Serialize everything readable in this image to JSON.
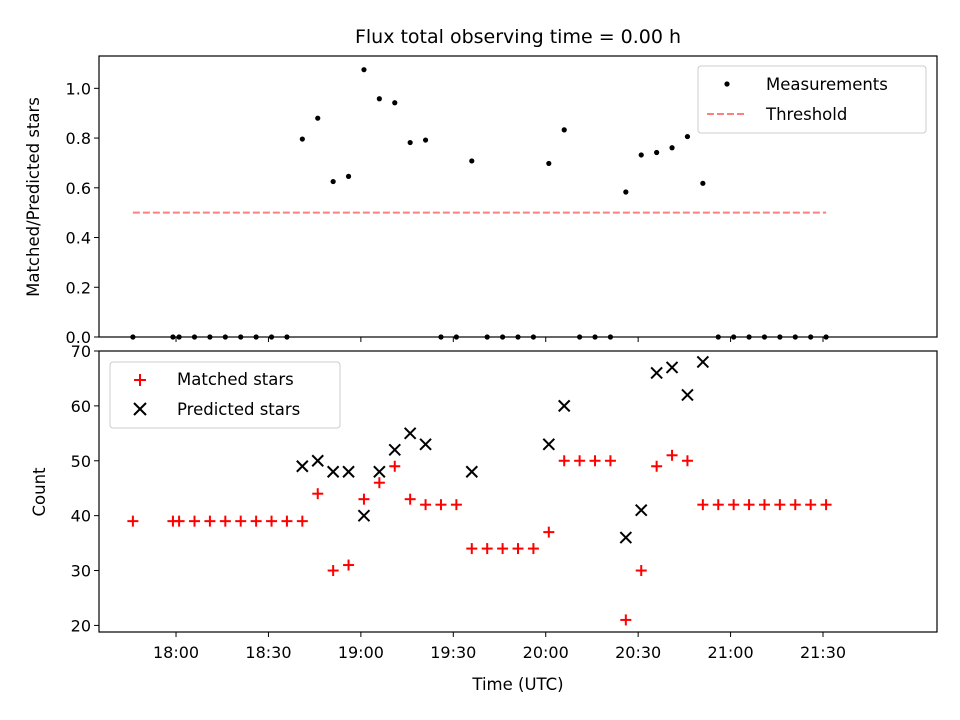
{
  "chart_data": [
    {
      "type": "scatter",
      "title": "Flux total observing time = 0.00 h",
      "xlabel": "",
      "ylabel": "Matched/Predicted stars",
      "ylim": [
        0,
        1.13
      ],
      "yticks": [
        0.0,
        0.2,
        0.4,
        0.6,
        0.8,
        1.0
      ],
      "ytick_labels": [
        "0.0",
        "0.2",
        "0.4",
        "0.6",
        "0.8",
        "1.0"
      ],
      "xlim": [
        "17:35",
        "22:07"
      ],
      "legend_position": "upper right",
      "series": [
        {
          "name": "Measurements",
          "marker": "dot",
          "color": "#000000",
          "points": [
            [
              "17:46",
              0.0
            ],
            [
              "17:59",
              0.0
            ],
            [
              "18:01",
              0.0
            ],
            [
              "18:06",
              0.0
            ],
            [
              "18:11",
              0.0
            ],
            [
              "18:16",
              0.0
            ],
            [
              "18:21",
              0.0
            ],
            [
              "18:26",
              0.0
            ],
            [
              "18:31",
              0.0
            ],
            [
              "18:36",
              0.0
            ],
            [
              "18:41",
              0.796
            ],
            [
              "18:46",
              0.88
            ],
            [
              "18:51",
              0.625
            ],
            [
              "18:56",
              0.646
            ],
            [
              "19:01",
              1.075
            ],
            [
              "19:06",
              0.958
            ],
            [
              "19:11",
              0.942
            ],
            [
              "19:16",
              0.782
            ],
            [
              "19:21",
              0.792
            ],
            [
              "19:26",
              0.0
            ],
            [
              "19:31",
              0.0
            ],
            [
              "19:36",
              0.708
            ],
            [
              "19:41",
              0.0
            ],
            [
              "19:46",
              0.0
            ],
            [
              "19:51",
              0.0
            ],
            [
              "19:56",
              0.0
            ],
            [
              "20:01",
              0.698
            ],
            [
              "20:06",
              0.833
            ],
            [
              "20:11",
              0.0
            ],
            [
              "20:16",
              0.0
            ],
            [
              "20:21",
              0.0
            ],
            [
              "20:26",
              0.583
            ],
            [
              "20:31",
              0.732
            ],
            [
              "20:36",
              0.742
            ],
            [
              "20:41",
              0.761
            ],
            [
              "20:46",
              0.806
            ],
            [
              "20:51",
              0.618
            ],
            [
              "20:56",
              0.0
            ],
            [
              "21:01",
              0.0
            ],
            [
              "21:06",
              0.0
            ],
            [
              "21:11",
              0.0
            ],
            [
              "21:16",
              0.0
            ],
            [
              "21:21",
              0.0
            ],
            [
              "21:26",
              0.0
            ],
            [
              "21:31",
              0.0
            ]
          ]
        },
        {
          "name": "Threshold",
          "marker": "dashed-line",
          "color": "#ff7f7f",
          "points": [
            [
              "17:46",
              0.5
            ],
            [
              "21:31",
              0.5
            ]
          ]
        }
      ]
    },
    {
      "type": "scatter",
      "title": "",
      "xlabel": "Time (UTC)",
      "ylabel": "Count",
      "ylim": [
        18.8,
        70
      ],
      "yticks": [
        20,
        30,
        40,
        50,
        60,
        70
      ],
      "ytick_labels": [
        "20",
        "30",
        "40",
        "50",
        "60",
        "70"
      ],
      "xlim": [
        "17:35",
        "22:07"
      ],
      "xticks": [
        "18:00",
        "18:30",
        "19:00",
        "19:30",
        "20:00",
        "20:30",
        "21:00",
        "21:30"
      ],
      "xtick_labels": [
        "18:00",
        "18:30",
        "19:00",
        "19:30",
        "20:00",
        "20:30",
        "21:00",
        "21:30"
      ],
      "legend_position": "upper left",
      "series": [
        {
          "name": "Matched stars",
          "marker": "plus",
          "color": "#ff0000",
          "points": [
            [
              "17:46",
              39
            ],
            [
              "17:59",
              39
            ],
            [
              "18:01",
              39
            ],
            [
              "18:06",
              39
            ],
            [
              "18:11",
              39
            ],
            [
              "18:16",
              39
            ],
            [
              "18:21",
              39
            ],
            [
              "18:26",
              39
            ],
            [
              "18:31",
              39
            ],
            [
              "18:36",
              39
            ],
            [
              "18:41",
              39
            ],
            [
              "18:46",
              44
            ],
            [
              "18:51",
              30
            ],
            [
              "18:56",
              31
            ],
            [
              "19:01",
              43
            ],
            [
              "19:06",
              46
            ],
            [
              "19:11",
              49
            ],
            [
              "19:16",
              43
            ],
            [
              "19:21",
              42
            ],
            [
              "19:26",
              42
            ],
            [
              "19:31",
              42
            ],
            [
              "19:36",
              34
            ],
            [
              "19:41",
              34
            ],
            [
              "19:46",
              34
            ],
            [
              "19:51",
              34
            ],
            [
              "19:56",
              34
            ],
            [
              "20:01",
              37
            ],
            [
              "20:06",
              50
            ],
            [
              "20:11",
              50
            ],
            [
              "20:16",
              50
            ],
            [
              "20:21",
              50
            ],
            [
              "20:26",
              21
            ],
            [
              "20:31",
              30
            ],
            [
              "20:36",
              49
            ],
            [
              "20:41",
              51
            ],
            [
              "20:46",
              50
            ],
            [
              "20:51",
              42
            ],
            [
              "20:56",
              42
            ],
            [
              "21:01",
              42
            ],
            [
              "21:06",
              42
            ],
            [
              "21:11",
              42
            ],
            [
              "21:16",
              42
            ],
            [
              "21:21",
              42
            ],
            [
              "21:26",
              42
            ],
            [
              "21:31",
              42
            ]
          ]
        },
        {
          "name": "Predicted stars",
          "marker": "x",
          "color": "#000000",
          "points": [
            [
              "18:41",
              49
            ],
            [
              "18:46",
              50
            ],
            [
              "18:51",
              48
            ],
            [
              "18:56",
              48
            ],
            [
              "19:01",
              40
            ],
            [
              "19:06",
              48
            ],
            [
              "19:11",
              52
            ],
            [
              "19:16",
              55
            ],
            [
              "19:21",
              53
            ],
            [
              "19:36",
              48
            ],
            [
              "20:01",
              53
            ],
            [
              "20:06",
              60
            ],
            [
              "20:26",
              36
            ],
            [
              "20:31",
              41
            ],
            [
              "20:36",
              66
            ],
            [
              "20:41",
              67
            ],
            [
              "20:46",
              62
            ],
            [
              "20:51",
              68
            ]
          ]
        }
      ]
    }
  ]
}
